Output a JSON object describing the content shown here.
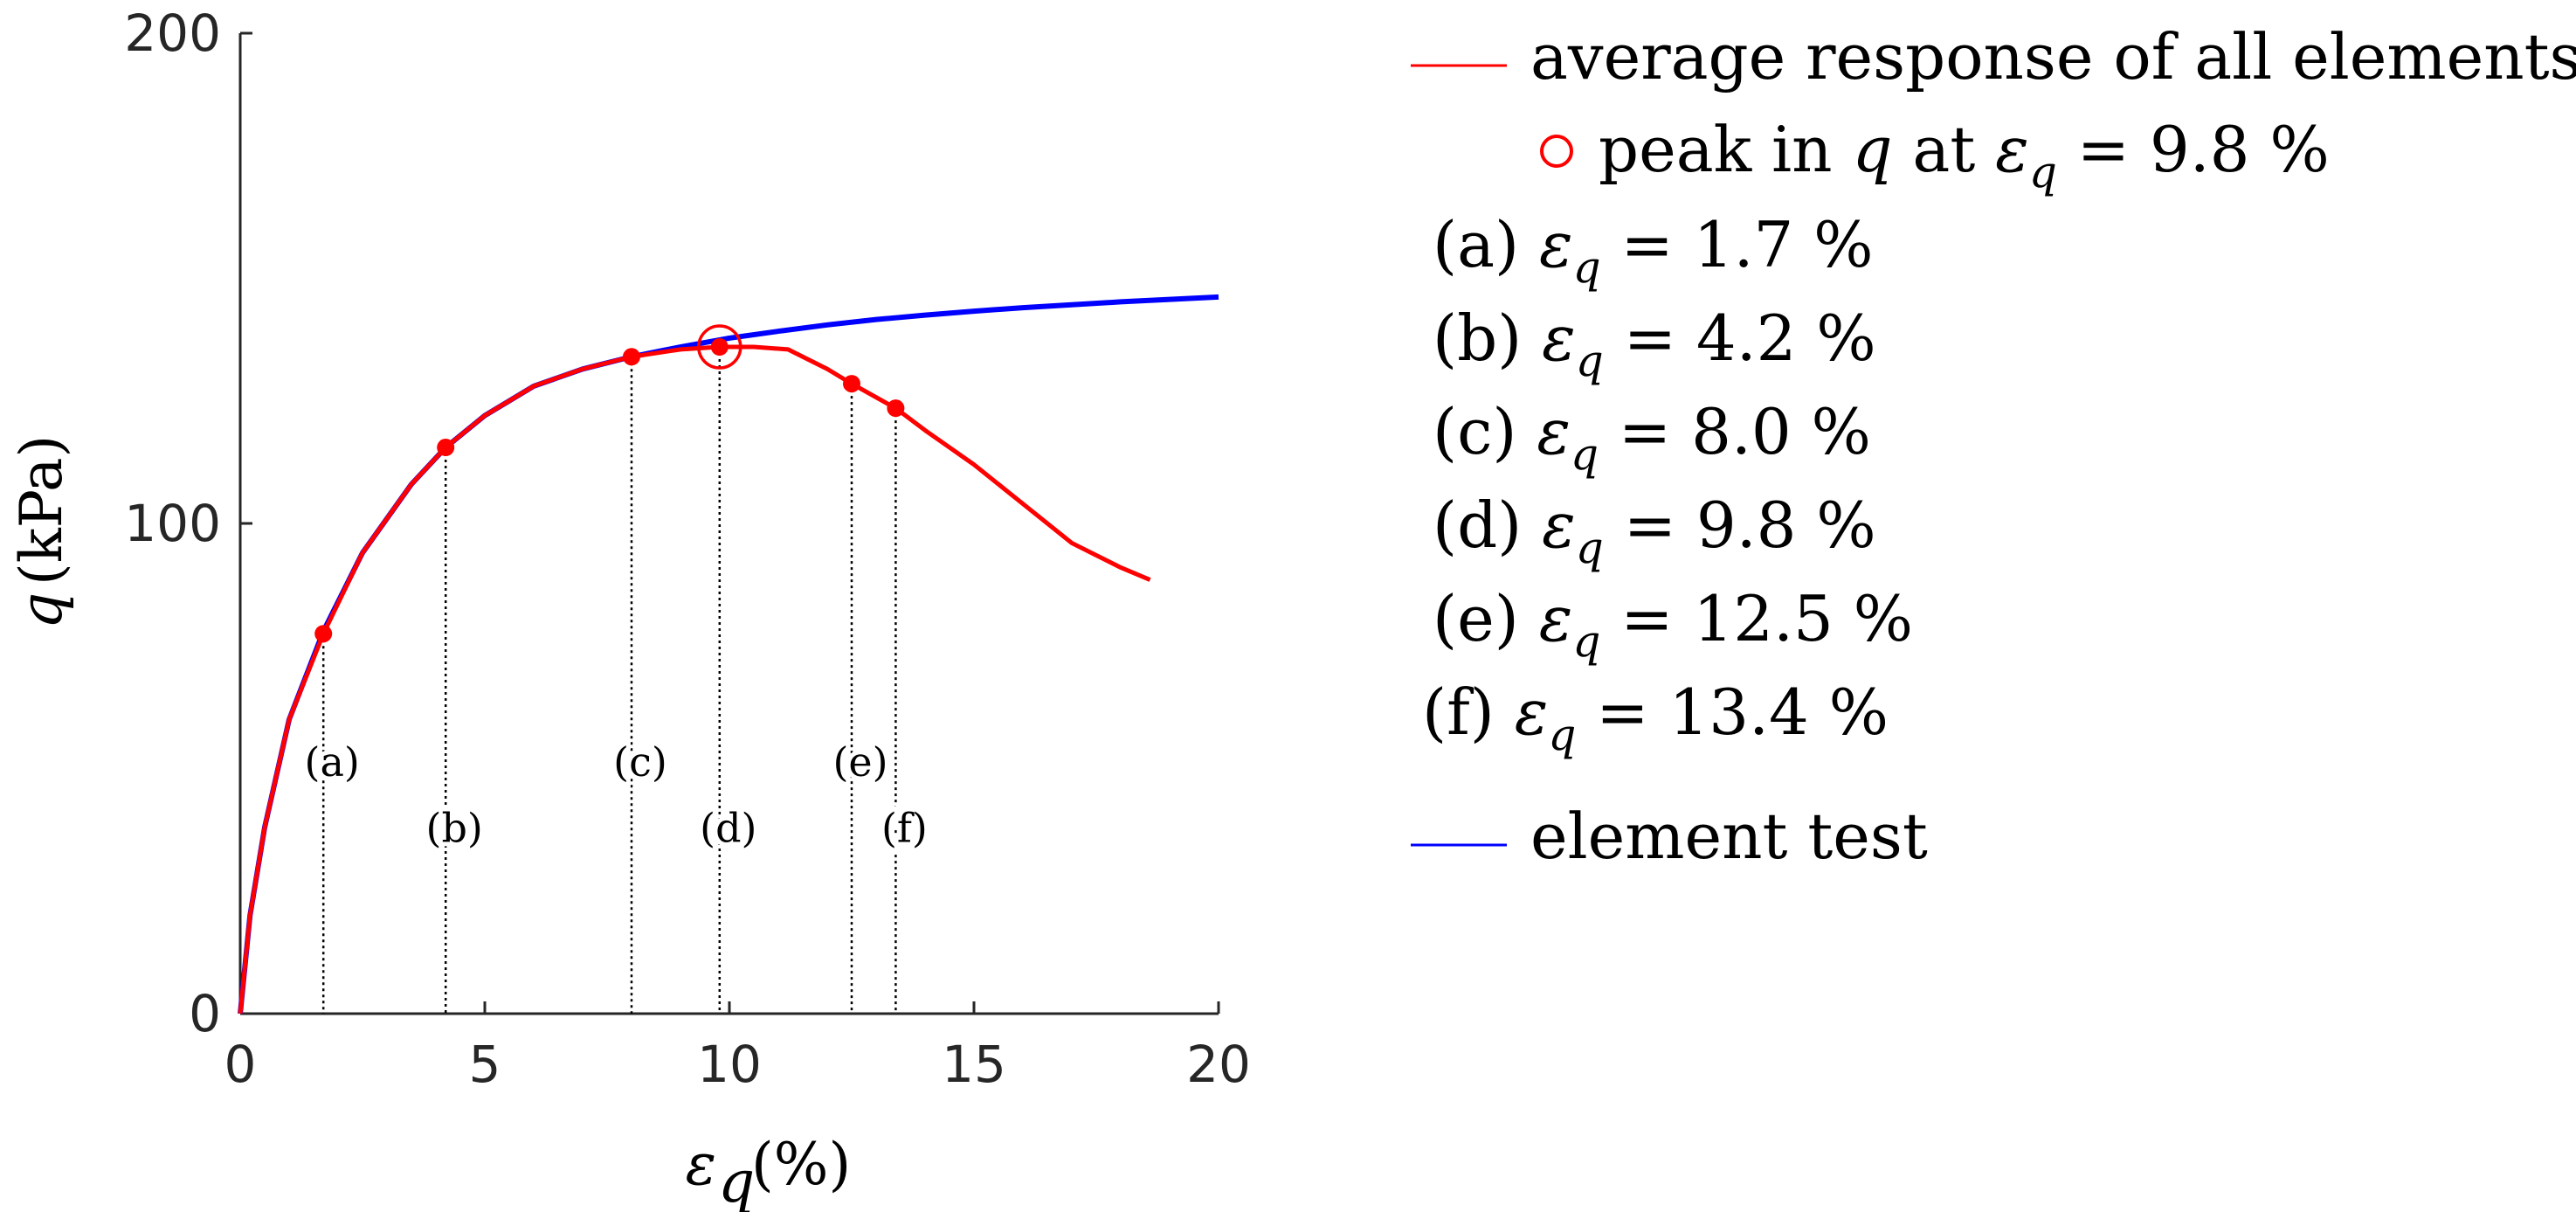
{
  "chart_data": {
    "type": "line",
    "xlabel_symbol": "ε",
    "xlabel_sub": "q",
    "xlabel_unit": "(%)",
    "ylabel_symbol": "q",
    "ylabel_unit": "(kPa)",
    "xlim": [
      0,
      20
    ],
    "ylim": [
      0,
      200
    ],
    "xticks": [
      "0",
      "5",
      "10",
      "15",
      "20"
    ],
    "yticks": [
      "0",
      "100",
      "200"
    ],
    "colors": {
      "average": "#ff0000",
      "element": "#0000ff",
      "axis": "#262626"
    },
    "series": [
      {
        "name": "average response of all elements",
        "x": [
          0,
          0.2,
          0.5,
          1.0,
          1.7,
          2.5,
          3.5,
          4.2,
          5,
          6,
          7,
          8,
          9,
          9.8,
          10.5,
          11.2,
          12,
          12.5,
          13.4,
          14,
          15,
          16,
          17,
          18,
          18.6
        ],
        "y": [
          0,
          20,
          38,
          60,
          77.5,
          94,
          108,
          115.5,
          122,
          128,
          131.5,
          134,
          135.5,
          136,
          136,
          135.5,
          131.5,
          128.5,
          123.5,
          119,
          112,
          104,
          96,
          91,
          88.5
        ]
      },
      {
        "name": "element test",
        "x": [
          0,
          0.2,
          0.5,
          1.0,
          1.7,
          2.5,
          3.5,
          4.2,
          5,
          6,
          7,
          8,
          9,
          10,
          11,
          12,
          13,
          14,
          15,
          16,
          17,
          18,
          19,
          20
        ],
        "y": [
          0,
          20,
          38,
          60,
          78,
          94,
          108,
          115.5,
          122,
          128,
          131.5,
          134,
          136,
          137.8,
          139.2,
          140.5,
          141.6,
          142.5,
          143.3,
          144.0,
          144.6,
          145.2,
          145.7,
          146.2
        ]
      }
    ],
    "peak": {
      "x": 9.8,
      "y": 136
    },
    "markers": [
      {
        "label": "(a)",
        "x": 1.7,
        "y": 77.5,
        "label_y": 51
      },
      {
        "label": "(b)",
        "x": 4.2,
        "y": 115.5,
        "label_y": 37.5
      },
      {
        "label": "(c)",
        "x": 8.0,
        "y": 134,
        "label_y": 51
      },
      {
        "label": "(d)",
        "x": 9.8,
        "y": 136,
        "label_y": 37.5
      },
      {
        "label": "(e)",
        "x": 12.5,
        "y": 128.5,
        "label_y": 51
      },
      {
        "label": "(f)",
        "x": 13.4,
        "y": 123.5,
        "label_y": 37.5
      }
    ],
    "legend": {
      "average_label": "average response of all elements",
      "peak_prefix": "peak in ",
      "peak_q": "q",
      "peak_at": " at ",
      "peak_eps": "ε",
      "peak_sub": "q",
      "peak_value": " = 9.8 %",
      "entries": [
        {
          "tag": "(a)",
          "eps": "ε",
          "sub": "q",
          "value": "= 1.7 %"
        },
        {
          "tag": "(b)",
          "eps": "ε",
          "sub": "q",
          "value": "= 4.2 %"
        },
        {
          "tag": "(c)",
          "eps": "ε",
          "sub": "q",
          "value": "= 8.0 %"
        },
        {
          "tag": "(d)",
          "eps": "ε",
          "sub": "q",
          "value": "= 9.8 %"
        },
        {
          "tag": "(e)",
          "eps": "ε",
          "sub": "q",
          "value": "= 12.5 %"
        },
        {
          "tag": "(f)",
          "eps": "ε",
          "sub": "q",
          "value": "= 13.4 %"
        }
      ],
      "element_label": "element test"
    }
  }
}
